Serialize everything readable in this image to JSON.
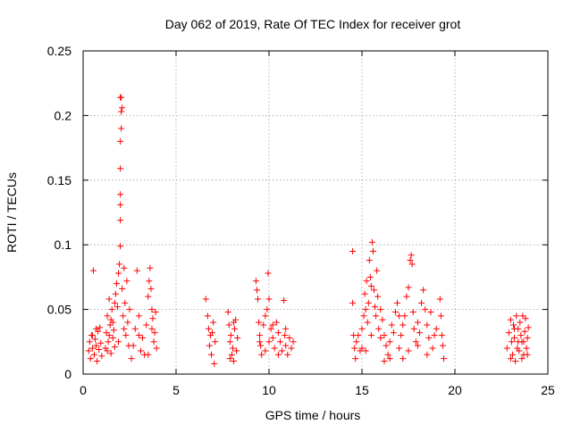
{
  "chart_data": {
    "type": "scatter",
    "title": "Day 062 of 2019, Rate Of TEC Index for receiver grot",
    "xlabel": "GPS time / hours",
    "ylabel": "ROTI / TECUs",
    "xlim": [
      0,
      25
    ],
    "ylim": [
      0,
      0.25
    ],
    "xticks": [
      0,
      5,
      10,
      15,
      20,
      25
    ],
    "xtick_labels": [
      "0",
      "5",
      "10",
      "15",
      "20",
      "25"
    ],
    "yticks": [
      0,
      0.05,
      0.1,
      0.15,
      0.2,
      0.25
    ],
    "ytick_labels": [
      "0",
      "0.05",
      "0.1",
      "0.15",
      "0.2",
      "0.25"
    ],
    "grid": true,
    "marker": "+",
    "marker_color": "#ff0000",
    "series": [
      {
        "name": "ROTI",
        "points": [
          [
            0.3,
            0.018
          ],
          [
            0.35,
            0.025
          ],
          [
            0.4,
            0.012
          ],
          [
            0.45,
            0.03
          ],
          [
            0.5,
            0.02
          ],
          [
            0.55,
            0.08
          ],
          [
            0.6,
            0.015
          ],
          [
            0.65,
            0.027
          ],
          [
            0.7,
            0.022
          ],
          [
            0.75,
            0.01
          ],
          [
            0.8,
            0.033
          ],
          [
            0.85,
            0.019
          ],
          [
            0.9,
            0.036
          ],
          [
            0.95,
            0.024
          ],
          [
            1.0,
            0.014
          ],
          [
            0.5,
            0.03
          ],
          [
            0.7,
            0.035
          ],
          [
            1.2,
            0.02
          ],
          [
            1.25,
            0.032
          ],
          [
            1.3,
            0.045
          ],
          [
            1.35,
            0.025
          ],
          [
            1.4,
            0.058
          ],
          [
            1.45,
            0.038
          ],
          [
            1.5,
            0.016
          ],
          [
            1.55,
            0.05
          ],
          [
            1.6,
            0.028
          ],
          [
            1.65,
            0.034
          ],
          [
            1.7,
            0.021
          ],
          [
            1.75,
            0.062
          ],
          [
            1.8,
            0.07
          ],
          [
            1.85,
            0.052
          ],
          [
            1.9,
            0.078
          ],
          [
            1.95,
            0.085
          ],
          [
            2.0,
            0.099
          ],
          [
            2.0,
            0.119
          ],
          [
            2.0,
            0.131
          ],
          [
            2.0,
            0.139
          ],
          [
            2.0,
            0.159
          ],
          [
            2.0,
            0.18
          ],
          [
            2.05,
            0.19
          ],
          [
            2.05,
            0.203
          ],
          [
            2.05,
            0.214
          ],
          [
            2.1,
            0.206
          ],
          [
            2.0,
            0.214
          ],
          [
            2.1,
            0.066
          ],
          [
            2.15,
            0.045
          ],
          [
            2.2,
            0.082
          ],
          [
            2.25,
            0.055
          ],
          [
            2.3,
            0.03
          ],
          [
            2.35,
            0.072
          ],
          [
            2.4,
            0.04
          ],
          [
            2.45,
            0.022
          ],
          [
            2.5,
            0.05
          ],
          [
            1.4,
            0.03
          ],
          [
            1.6,
            0.04
          ],
          [
            1.9,
            0.025
          ],
          [
            2.2,
            0.035
          ],
          [
            1.3,
            0.018
          ],
          [
            1.5,
            0.042
          ],
          [
            1.7,
            0.055
          ],
          [
            2.6,
            0.012
          ],
          [
            2.7,
            0.022
          ],
          [
            2.8,
            0.035
          ],
          [
            2.9,
            0.08
          ],
          [
            3.0,
            0.045
          ],
          [
            3.1,
            0.018
          ],
          [
            3.2,
            0.028
          ],
          [
            3.3,
            0.015
          ],
          [
            3.4,
            0.038
          ],
          [
            3.5,
            0.06
          ],
          [
            3.55,
            0.072
          ],
          [
            3.6,
            0.082
          ],
          [
            3.65,
            0.066
          ],
          [
            3.7,
            0.05
          ],
          [
            3.75,
            0.043
          ],
          [
            3.8,
            0.025
          ],
          [
            3.85,
            0.032
          ],
          [
            3.9,
            0.048
          ],
          [
            3.95,
            0.02
          ],
          [
            3.0,
            0.03
          ],
          [
            3.5,
            0.015
          ],
          [
            3.7,
            0.035
          ],
          [
            6.6,
            0.058
          ],
          [
            6.7,
            0.045
          ],
          [
            6.75,
            0.035
          ],
          [
            6.8,
            0.022
          ],
          [
            6.85,
            0.03
          ],
          [
            6.9,
            0.015
          ],
          [
            7.0,
            0.04
          ],
          [
            7.05,
            0.008
          ],
          [
            7.1,
            0.025
          ],
          [
            6.95,
            0.032
          ],
          [
            7.8,
            0.048
          ],
          [
            7.85,
            0.038
          ],
          [
            7.9,
            0.025
          ],
          [
            7.95,
            0.03
          ],
          [
            8.0,
            0.015
          ],
          [
            8.05,
            0.02
          ],
          [
            8.1,
            0.01
          ],
          [
            8.15,
            0.035
          ],
          [
            8.2,
            0.042
          ],
          [
            8.25,
            0.018
          ],
          [
            8.3,
            0.028
          ],
          [
            7.9,
            0.012
          ],
          [
            8.1,
            0.04
          ],
          [
            9.3,
            0.072
          ],
          [
            9.35,
            0.065
          ],
          [
            9.4,
            0.058
          ],
          [
            9.45,
            0.04
          ],
          [
            9.5,
            0.03
          ],
          [
            9.55,
            0.022
          ],
          [
            9.6,
            0.015
          ],
          [
            9.7,
            0.038
          ],
          [
            9.8,
            0.045
          ],
          [
            9.9,
            0.05
          ],
          [
            9.95,
            0.078
          ],
          [
            10.0,
            0.058
          ],
          [
            10.1,
            0.035
          ],
          [
            10.2,
            0.028
          ],
          [
            10.3,
            0.02
          ],
          [
            10.4,
            0.04
          ],
          [
            10.5,
            0.032
          ],
          [
            10.6,
            0.025
          ],
          [
            10.7,
            0.018
          ],
          [
            10.8,
            0.057
          ],
          [
            10.85,
            0.03
          ],
          [
            10.9,
            0.022
          ],
          [
            11.0,
            0.015
          ],
          [
            11.1,
            0.028
          ],
          [
            11.2,
            0.02
          ],
          [
            11.3,
            0.025
          ],
          [
            9.5,
            0.025
          ],
          [
            9.8,
            0.018
          ],
          [
            10.2,
            0.038
          ],
          [
            10.5,
            0.015
          ],
          [
            10.9,
            0.035
          ],
          [
            10.0,
            0.025
          ],
          [
            14.5,
            0.095
          ],
          [
            14.5,
            0.055
          ],
          [
            14.55,
            0.03
          ],
          [
            14.6,
            0.02
          ],
          [
            14.65,
            0.012
          ],
          [
            14.7,
            0.025
          ],
          [
            14.8,
            0.03
          ],
          [
            14.9,
            0.018
          ],
          [
            15.0,
            0.035
          ],
          [
            15.1,
            0.045
          ],
          [
            15.15,
            0.062
          ],
          [
            15.2,
            0.05
          ],
          [
            15.25,
            0.072
          ],
          [
            15.3,
            0.04
          ],
          [
            15.35,
            0.055
          ],
          [
            15.4,
            0.088
          ],
          [
            15.45,
            0.075
          ],
          [
            15.5,
            0.068
          ],
          [
            15.55,
            0.102
          ],
          [
            15.6,
            0.095
          ],
          [
            15.65,
            0.065
          ],
          [
            15.7,
            0.052
          ],
          [
            15.75,
            0.045
          ],
          [
            15.8,
            0.08
          ],
          [
            15.85,
            0.06
          ],
          [
            15.9,
            0.035
          ],
          [
            16.0,
            0.028
          ],
          [
            16.1,
            0.042
          ],
          [
            16.2,
            0.03
          ],
          [
            16.3,
            0.022
          ],
          [
            16.4,
            0.015
          ],
          [
            16.5,
            0.025
          ],
          [
            16.6,
            0.038
          ],
          [
            16.7,
            0.032
          ],
          [
            16.8,
            0.048
          ],
          [
            16.9,
            0.055
          ],
          [
            17.0,
            0.02
          ],
          [
            17.1,
            0.03
          ],
          [
            17.2,
            0.038
          ],
          [
            17.3,
            0.045
          ],
          [
            17.4,
            0.06
          ],
          [
            17.5,
            0.067
          ],
          [
            17.6,
            0.088
          ],
          [
            17.65,
            0.092
          ],
          [
            17.7,
            0.085
          ],
          [
            17.75,
            0.048
          ],
          [
            17.8,
            0.035
          ],
          [
            17.9,
            0.025
          ],
          [
            18.0,
            0.04
          ],
          [
            18.1,
            0.032
          ],
          [
            18.2,
            0.055
          ],
          [
            18.3,
            0.065
          ],
          [
            18.4,
            0.05
          ],
          [
            18.5,
            0.038
          ],
          [
            18.6,
            0.028
          ],
          [
            18.7,
            0.048
          ],
          [
            18.8,
            0.02
          ],
          [
            18.9,
            0.03
          ],
          [
            19.0,
            0.035
          ],
          [
            19.2,
            0.058
          ],
          [
            19.25,
            0.045
          ],
          [
            19.3,
            0.03
          ],
          [
            19.35,
            0.022
          ],
          [
            19.4,
            0.012
          ],
          [
            15.0,
            0.02
          ],
          [
            15.5,
            0.03
          ],
          [
            16.0,
            0.05
          ],
          [
            16.5,
            0.012
          ],
          [
            17.0,
            0.045
          ],
          [
            17.5,
            0.018
          ],
          [
            18.0,
            0.022
          ],
          [
            18.5,
            0.015
          ],
          [
            15.2,
            0.018
          ],
          [
            16.2,
            0.01
          ],
          [
            17.2,
            0.012
          ],
          [
            22.8,
            0.02
          ],
          [
            22.9,
            0.032
          ],
          [
            23.0,
            0.042
          ],
          [
            23.05,
            0.025
          ],
          [
            23.1,
            0.015
          ],
          [
            23.15,
            0.038
          ],
          [
            23.2,
            0.028
          ],
          [
            23.25,
            0.01
          ],
          [
            23.3,
            0.045
          ],
          [
            23.35,
            0.02
          ],
          [
            23.4,
            0.035
          ],
          [
            23.45,
            0.018
          ],
          [
            23.5,
            0.04
          ],
          [
            23.55,
            0.03
          ],
          [
            23.6,
            0.025
          ],
          [
            23.65,
            0.045
          ],
          [
            23.7,
            0.015
          ],
          [
            23.75,
            0.033
          ],
          [
            23.8,
            0.043
          ],
          [
            23.85,
            0.02
          ],
          [
            23.9,
            0.028
          ],
          [
            23.95,
            0.036
          ],
          [
            23.0,
            0.012
          ],
          [
            23.4,
            0.025
          ],
          [
            23.7,
            0.025
          ],
          [
            23.2,
            0.035
          ],
          [
            23.6,
            0.012
          ],
          [
            23.9,
            0.015
          ]
        ]
      }
    ]
  }
}
